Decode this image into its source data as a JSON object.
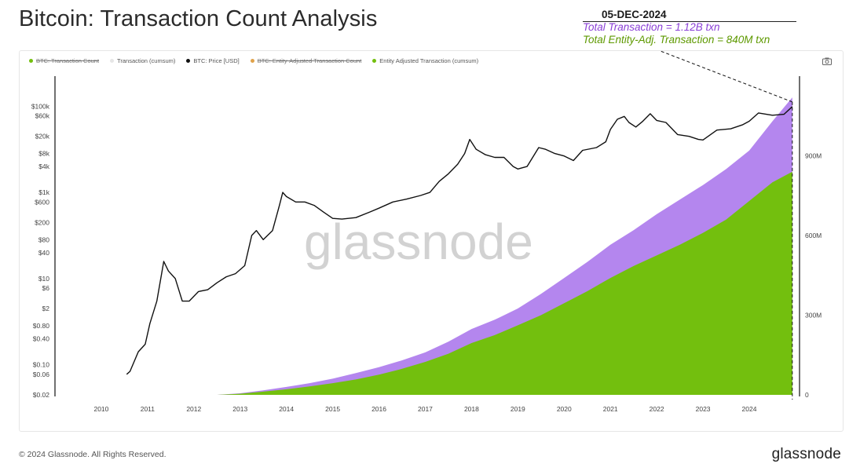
{
  "title": "Bitcoin: Transaction Count Analysis",
  "annotation": {
    "date": "05-DEC-2024",
    "total": "Total Transaction = 1.12B txn",
    "entity": "Total Entity-Adj. Transaction = 840M txn"
  },
  "watermark": "glassnode",
  "footer": {
    "copyright": "© 2024 Glassnode. All Rights Reserved.",
    "logo": "glassnode"
  },
  "colors": {
    "total_fill": "#b486ee",
    "entity_fill": "#73bf0e",
    "price_line": "#111111",
    "total_text": "#8a3fd6",
    "entity_text": "#5e9900"
  },
  "chart_data": {
    "type": "area",
    "legend": [
      {
        "label": "BTC: Transaction Count",
        "color": "#73bf0e",
        "struck": true
      },
      {
        "label": "Transaction (cumsum)",
        "color": "#e6e6e6",
        "struck": false
      },
      {
        "label": "BTC: Price [USD]",
        "color": "#111111",
        "struck": false
      },
      {
        "label": "BTC: Entity-Adjusted Transaction Count",
        "color": "#e0a24a",
        "struck": true
      },
      {
        "label": "Entity Adjusted Transaction (cumsum)",
        "color": "#73bf0e",
        "struck": false
      }
    ],
    "x_ticks": [
      "2010",
      "2011",
      "2012",
      "2013",
      "2014",
      "2015",
      "2016",
      "2017",
      "2018",
      "2019",
      "2020",
      "2021",
      "2022",
      "2023",
      "2024"
    ],
    "xlim": [
      2009.0,
      2024.95
    ],
    "y_left": {
      "scale": "log",
      "ticks": [
        100000,
        60000,
        20000,
        8000,
        4000,
        1000,
        600,
        200,
        80,
        40,
        10,
        6,
        2,
        0.8,
        0.4,
        0.1,
        0.06,
        0.02
      ],
      "tick_labels": [
        "$100k",
        "$60k",
        "$20k",
        "$8k",
        "$4k",
        "$1k",
        "$600",
        "$200",
        "$80",
        "$40",
        "$10",
        "$6",
        "$2",
        "$0.80",
        "$0.40",
        "$0.10",
        "$0.06",
        "$0.02"
      ],
      "ylim": [
        0.02,
        500000
      ]
    },
    "y_right": {
      "ticks": [
        0,
        300000000,
        600000000,
        900000000
      ],
      "tick_labels": [
        "0",
        "300M",
        "600M",
        "900M"
      ],
      "ylim": [
        0,
        1200000000
      ]
    },
    "series": [
      {
        "name": "Transaction (cumsum)",
        "axis": "right",
        "x": [
          2012.5,
          2013.0,
          2013.5,
          2014.0,
          2014.5,
          2015.0,
          2015.5,
          2016.0,
          2016.5,
          2017.0,
          2017.5,
          2018.0,
          2018.5,
          2019.0,
          2019.5,
          2020.0,
          2020.5,
          2021.0,
          2021.5,
          2022.0,
          2022.5,
          2023.0,
          2023.5,
          2024.0,
          2024.5,
          2024.93
        ],
        "values": [
          0,
          6000000,
          17000000,
          30000000,
          44000000,
          61000000,
          82000000,
          104000000,
          130000000,
          160000000,
          200000000,
          248000000,
          283000000,
          325000000,
          380000000,
          440000000,
          500000000,
          565000000,
          620000000,
          680000000,
          735000000,
          790000000,
          850000000,
          920000000,
          1030000000,
          1120000000
        ]
      },
      {
        "name": "Entity Adjusted Transaction (cumsum)",
        "axis": "right",
        "x": [
          2012.5,
          2013.0,
          2013.5,
          2014.0,
          2014.5,
          2015.0,
          2015.5,
          2016.0,
          2016.5,
          2017.0,
          2017.5,
          2018.0,
          2018.5,
          2019.0,
          2019.5,
          2020.0,
          2020.5,
          2021.0,
          2021.5,
          2022.0,
          2022.5,
          2023.0,
          2023.5,
          2024.0,
          2024.5,
          2024.93
        ],
        "values": [
          0,
          4000000,
          12000000,
          21000000,
          32000000,
          44000000,
          58000000,
          76000000,
          98000000,
          124000000,
          155000000,
          195000000,
          225000000,
          262000000,
          300000000,
          345000000,
          390000000,
          440000000,
          485000000,
          525000000,
          565000000,
          610000000,
          660000000,
          730000000,
          800000000,
          840000000
        ]
      },
      {
        "name": "BTC: Price [USD]",
        "axis": "left",
        "x": [
          2010.55,
          2010.62,
          2010.8,
          2010.95,
          2011.05,
          2011.2,
          2011.35,
          2011.45,
          2011.6,
          2011.75,
          2011.9,
          2012.1,
          2012.3,
          2012.5,
          2012.7,
          2012.9,
          2013.1,
          2013.25,
          2013.35,
          2013.5,
          2013.7,
          2013.85,
          2013.92,
          2014.0,
          2014.2,
          2014.4,
          2014.6,
          2014.8,
          2015.0,
          2015.2,
          2015.5,
          2015.8,
          2016.0,
          2016.3,
          2016.6,
          2016.9,
          2017.1,
          2017.3,
          2017.5,
          2017.7,
          2017.85,
          2017.96,
          2018.1,
          2018.3,
          2018.5,
          2018.7,
          2018.9,
          2019.0,
          2019.2,
          2019.45,
          2019.6,
          2019.8,
          2020.0,
          2020.2,
          2020.4,
          2020.7,
          2020.9,
          2021.0,
          2021.15,
          2021.3,
          2021.4,
          2021.55,
          2021.7,
          2021.86,
          2022.0,
          2022.2,
          2022.45,
          2022.7,
          2022.9,
          2023.0,
          2023.3,
          2023.6,
          2023.85,
          2024.0,
          2024.2,
          2024.5,
          2024.75,
          2024.93
        ],
        "values": [
          0.06,
          0.07,
          0.2,
          0.3,
          0.9,
          3,
          25,
          15,
          10,
          3,
          3,
          5,
          5.5,
          8,
          11,
          13,
          20,
          100,
          130,
          80,
          130,
          500,
          1000,
          800,
          600,
          600,
          500,
          350,
          250,
          240,
          260,
          350,
          430,
          600,
          700,
          850,
          1000,
          1800,
          2700,
          4500,
          8000,
          17000,
          10000,
          7500,
          6500,
          6500,
          4000,
          3500,
          4000,
          11000,
          10000,
          8000,
          7000,
          5500,
          9500,
          11000,
          15000,
          29000,
          50000,
          58000,
          42000,
          33000,
          45000,
          67000,
          47000,
          42000,
          22000,
          20000,
          17000,
          16500,
          28000,
          30000,
          37000,
          45000,
          70000,
          62000,
          65000,
          98000
        ]
      }
    ]
  }
}
